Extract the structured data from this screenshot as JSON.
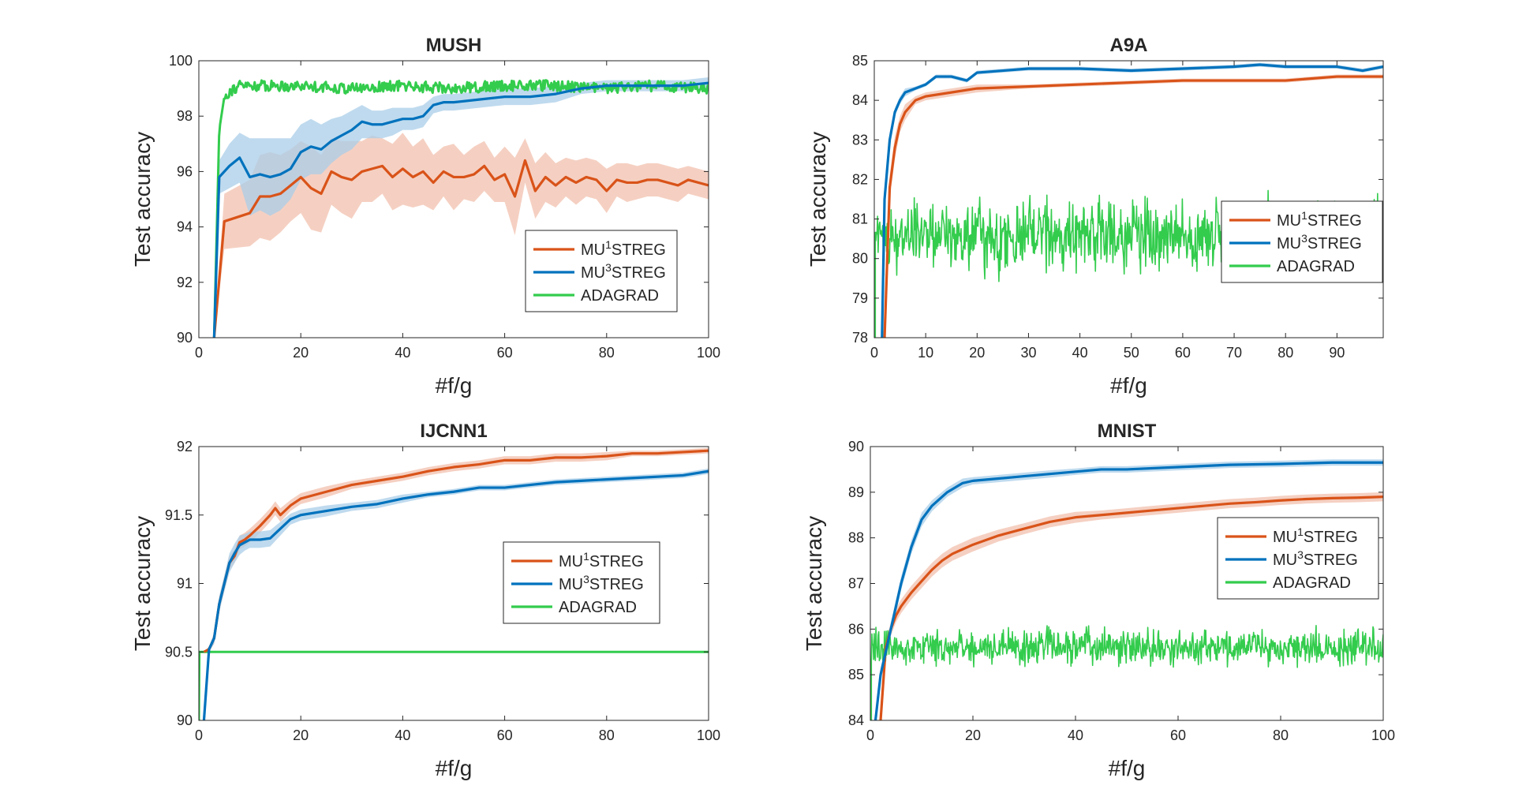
{
  "colors": {
    "mu1": "#d95319",
    "mu3": "#0072bd",
    "adagrad": "#33cc4d",
    "mu1_band": "#f2c0ad",
    "mu3_band": "#a9cde8",
    "axis": "#262626"
  },
  "chart_data": [
    {
      "type": "line",
      "title": "MUSH",
      "xlabel": "#f/g",
      "ylabel": "Test accuracy",
      "xlim": [
        0,
        100
      ],
      "ylim": [
        90,
        100
      ],
      "xticks": [
        "0",
        "20",
        "40",
        "60",
        "80",
        "100"
      ],
      "yticks": [
        "90",
        "92",
        "94",
        "96",
        "98",
        "100"
      ],
      "legend_position": "lower-right",
      "adagrad_style": "smooth",
      "adagrad_sigma": 0.2,
      "series": [
        {
          "name": "MU",
          "sup": "1",
          "suffix": "STREG",
          "key": "mu1",
          "x": [
            3,
            5,
            10,
            12,
            14,
            16,
            18,
            20,
            22,
            24,
            26,
            28,
            30,
            32,
            34,
            36,
            38,
            40,
            42,
            44,
            46,
            48,
            50,
            52,
            54,
            56,
            58,
            60,
            62,
            64,
            66,
            68,
            70,
            72,
            74,
            76,
            78,
            80,
            82,
            84,
            86,
            88,
            90,
            92,
            94,
            96,
            98,
            100
          ],
          "y": [
            90,
            94.2,
            94.5,
            95.1,
            95.1,
            95.2,
            95.5,
            95.8,
            95.4,
            95.2,
            96,
            95.8,
            95.7,
            96.0,
            96.1,
            96.2,
            95.8,
            96.1,
            95.8,
            96.0,
            95.6,
            96.0,
            95.8,
            95.8,
            95.9,
            96.2,
            95.7,
            95.9,
            95.1,
            96.4,
            95.3,
            95.8,
            95.5,
            95.8,
            95.6,
            95.8,
            95.7,
            95.3,
            95.7,
            95.6,
            95.6,
            95.7,
            95.7,
            95.6,
            95.5,
            95.7,
            95.6,
            95.5
          ],
          "band": [
            0,
            1.0,
            1.2,
            1.5,
            1.6,
            1.4,
            1.3,
            1.3,
            1.5,
            1.4,
            1.2,
            1.3,
            1.4,
            1.1,
            1.2,
            1.0,
            1.2,
            1.3,
            1.1,
            1.2,
            1.0,
            0.9,
            1.2,
            0.8,
            1.0,
            0.9,
            0.8,
            1.0,
            1.4,
            0.8,
            1.0,
            0.9,
            0.8,
            0.7,
            0.8,
            0.7,
            0.7,
            0.8,
            0.6,
            0.7,
            0.6,
            0.6,
            0.6,
            0.6,
            0.6,
            0.5,
            0.5,
            0.5
          ]
        },
        {
          "name": "MU",
          "sup": "3",
          "suffix": "STREG",
          "key": "mu3",
          "x": [
            3,
            4,
            6,
            8,
            10,
            12,
            14,
            16,
            18,
            20,
            22,
            24,
            26,
            28,
            30,
            32,
            34,
            36,
            38,
            40,
            42,
            44,
            46,
            48,
            50,
            55,
            60,
            65,
            70,
            75,
            80,
            85,
            90,
            95,
            100
          ],
          "y": [
            90,
            95.8,
            96.2,
            96.5,
            95.8,
            95.9,
            95.8,
            95.9,
            96.1,
            96.7,
            96.9,
            96.8,
            97.1,
            97.3,
            97.5,
            97.8,
            97.7,
            97.7,
            97.8,
            97.9,
            97.9,
            98.0,
            98.4,
            98.5,
            98.5,
            98.6,
            98.7,
            98.7,
            98.8,
            99.0,
            99.1,
            99.1,
            99.1,
            99.1,
            99.2
          ],
          "band": [
            0,
            0.6,
            0.8,
            0.9,
            1.4,
            1.3,
            1.4,
            1.3,
            1.1,
            1.0,
            1.0,
            0.9,
            0.8,
            0.7,
            0.7,
            0.6,
            0.5,
            0.5,
            0.5,
            0.4,
            0.4,
            0.4,
            0.3,
            0.3,
            0.3,
            0.3,
            0.3,
            0.3,
            0.3,
            0.2,
            0.2,
            0.2,
            0.2,
            0.2,
            0.2
          ]
        },
        {
          "name": "ADAGRAD",
          "sup": "",
          "suffix": "",
          "key": "adagrad",
          "x": [
            3,
            4,
            5,
            6,
            8,
            10,
            15,
            20,
            30,
            40,
            50,
            60,
            70,
            80,
            90,
            100
          ],
          "y": [
            90,
            97.5,
            98.7,
            98.9,
            99.1,
            99.1,
            99.1,
            99.1,
            99.0,
            99.1,
            99.0,
            99.1,
            99.1,
            99.0,
            99.1,
            99.0
          ]
        }
      ]
    },
    {
      "type": "line",
      "title": "A9A",
      "xlabel": "#f/g",
      "ylabel": "Test accuracy",
      "xlim": [
        0,
        99
      ],
      "ylim": [
        78,
        85
      ],
      "xticks": [
        "0",
        "10",
        "20",
        "30",
        "40",
        "50",
        "60",
        "70",
        "80",
        "90"
      ],
      "yticks": [
        "78",
        "79",
        "80",
        "81",
        "82",
        "83",
        "84",
        "85"
      ],
      "legend_position": "center-right",
      "adagrad_style": "noisy",
      "adagrad_center": 80.6,
      "adagrad_amp": 1.3,
      "adagrad_start": 0.2,
      "series": [
        {
          "name": "MU",
          "sup": "1",
          "suffix": "STREG",
          "key": "mu1",
          "x": [
            2,
            3,
            4,
            5,
            6,
            8,
            10,
            15,
            20,
            30,
            40,
            50,
            60,
            70,
            80,
            90,
            99
          ],
          "y": [
            78,
            81.8,
            82.8,
            83.4,
            83.7,
            84.0,
            84.1,
            84.2,
            84.3,
            84.35,
            84.4,
            84.45,
            84.5,
            84.5,
            84.5,
            84.6,
            84.6
          ],
          "band": [
            0,
            0.3,
            0.3,
            0.2,
            0.2,
            0.1,
            0.1,
            0.1,
            0.1,
            0.05,
            0.05,
            0.05,
            0.05,
            0.05,
            0.05,
            0.05,
            0.05
          ]
        },
        {
          "name": "MU",
          "sup": "3",
          "suffix": "STREG",
          "key": "mu3",
          "x": [
            1.5,
            2,
            3,
            4,
            5,
            6,
            8,
            10,
            12,
            15,
            18,
            20,
            25,
            30,
            40,
            50,
            60,
            70,
            75,
            80,
            90,
            95,
            99
          ],
          "y": [
            78,
            81.5,
            83.0,
            83.7,
            84.0,
            84.2,
            84.3,
            84.4,
            84.6,
            84.6,
            84.5,
            84.7,
            84.75,
            84.8,
            84.8,
            84.75,
            84.8,
            84.85,
            84.9,
            84.85,
            84.85,
            84.75,
            84.85
          ],
          "band": [
            0,
            0.3,
            0.2,
            0.1,
            0.1,
            0.1,
            0.05,
            0.05,
            0.05,
            0.05,
            0.05,
            0.05,
            0.05,
            0.05,
            0.05,
            0.05,
            0.05,
            0.05,
            0.05,
            0.05,
            0.05,
            0.05,
            0.05
          ]
        },
        {
          "name": "ADAGRAD",
          "sup": "",
          "suffix": "",
          "key": "adagrad",
          "x": [],
          "y": []
        }
      ]
    },
    {
      "type": "line",
      "title": "IJCNN1",
      "xlabel": "#f/g",
      "ylabel": "Test accuracy",
      "xlim": [
        0,
        100
      ],
      "ylim": [
        90,
        92
      ],
      "xticks": [
        "0",
        "20",
        "40",
        "60",
        "80",
        "100"
      ],
      "yticks": [
        "90",
        "90.5",
        "91",
        "91.5",
        "92"
      ],
      "legend_position": "center-right",
      "adagrad_style": "flat",
      "series": [
        {
          "name": "MU",
          "sup": "1",
          "suffix": "STREG",
          "key": "mu1",
          "x": [
            1,
            2,
            3,
            4,
            5,
            6,
            7,
            8,
            9,
            10,
            12,
            14,
            15,
            16,
            18,
            20,
            25,
            30,
            35,
            40,
            45,
            50,
            55,
            60,
            65,
            70,
            75,
            80,
            85,
            90,
            95,
            100
          ],
          "y": [
            90.5,
            90.52,
            90.6,
            90.85,
            91.0,
            91.15,
            91.2,
            91.3,
            91.32,
            91.35,
            91.42,
            91.5,
            91.55,
            91.5,
            91.57,
            91.62,
            91.67,
            91.72,
            91.75,
            91.78,
            91.82,
            91.85,
            91.87,
            91.9,
            91.9,
            91.92,
            91.92,
            91.93,
            91.95,
            91.95,
            91.96,
            91.97
          ],
          "band": [
            0,
            0.02,
            0.04,
            0.05,
            0.05,
            0.05,
            0.05,
            0.05,
            0.05,
            0.05,
            0.05,
            0.05,
            0.05,
            0.05,
            0.04,
            0.04,
            0.04,
            0.03,
            0.03,
            0.03,
            0.03,
            0.03,
            0.03,
            0.03,
            0.03,
            0.03,
            0.03,
            0.03,
            0.02,
            0.02,
            0.02,
            0.02
          ]
        },
        {
          "name": "MU",
          "sup": "3",
          "suffix": "STREG",
          "key": "mu3",
          "x": [
            1,
            2,
            3,
            4,
            5,
            6,
            7,
            8,
            9,
            10,
            12,
            14,
            16,
            18,
            20,
            25,
            30,
            35,
            40,
            45,
            50,
            55,
            60,
            65,
            70,
            75,
            80,
            85,
            90,
            95,
            100
          ],
          "y": [
            90,
            90.52,
            90.6,
            90.85,
            91.0,
            91.15,
            91.22,
            91.28,
            91.3,
            91.32,
            91.32,
            91.33,
            91.4,
            91.47,
            91.5,
            91.53,
            91.56,
            91.58,
            91.62,
            91.65,
            91.67,
            91.7,
            91.7,
            91.72,
            91.74,
            91.75,
            91.76,
            91.77,
            91.78,
            91.79,
            91.82
          ],
          "band": [
            0,
            0.02,
            0.04,
            0.06,
            0.06,
            0.07,
            0.07,
            0.07,
            0.06,
            0.06,
            0.06,
            0.06,
            0.05,
            0.04,
            0.04,
            0.04,
            0.03,
            0.03,
            0.03,
            0.02,
            0.02,
            0.02,
            0.02,
            0.02,
            0.02,
            0.02,
            0.02,
            0.02,
            0.02,
            0.02,
            0.02
          ]
        },
        {
          "name": "ADAGRAD",
          "sup": "",
          "suffix": "",
          "key": "adagrad",
          "x": [
            0,
            0.1,
            100
          ],
          "y": [
            90,
            90.5,
            90.5
          ]
        }
      ]
    },
    {
      "type": "line",
      "title": "MNIST",
      "xlabel": "#f/g",
      "ylabel": "Test accuracy",
      "xlim": [
        0,
        100
      ],
      "ylim": [
        84,
        90
      ],
      "xticks": [
        "0",
        "20",
        "40",
        "60",
        "80",
        "100"
      ],
      "yticks": [
        "84",
        "85",
        "86",
        "87",
        "88",
        "89",
        "90"
      ],
      "legend_position": "center-right",
      "adagrad_style": "noisy",
      "adagrad_center": 85.6,
      "adagrad_amp": 0.55,
      "adagrad_start": 0.2,
      "series": [
        {
          "name": "MU",
          "sup": "1",
          "suffix": "STREG",
          "key": "mu1",
          "x": [
            2,
            3,
            4,
            5,
            6,
            8,
            10,
            12,
            14,
            16,
            18,
            20,
            25,
            30,
            35,
            40,
            45,
            50,
            55,
            60,
            65,
            70,
            75,
            80,
            85,
            90,
            95,
            100
          ],
          "y": [
            84,
            85.6,
            86.0,
            86.3,
            86.5,
            86.8,
            87.05,
            87.3,
            87.5,
            87.65,
            87.75,
            87.85,
            88.05,
            88.2,
            88.35,
            88.45,
            88.5,
            88.55,
            88.6,
            88.65,
            88.7,
            88.75,
            88.78,
            88.82,
            88.85,
            88.87,
            88.88,
            88.9
          ],
          "band": [
            0,
            0.15,
            0.15,
            0.15,
            0.15,
            0.15,
            0.15,
            0.15,
            0.15,
            0.15,
            0.15,
            0.15,
            0.13,
            0.12,
            0.12,
            0.12,
            0.1,
            0.1,
            0.1,
            0.1,
            0.1,
            0.1,
            0.1,
            0.1,
            0.1,
            0.1,
            0.1,
            0.1
          ]
        },
        {
          "name": "MU",
          "sup": "3",
          "suffix": "STREG",
          "key": "mu3",
          "x": [
            1,
            2,
            3,
            4,
            5,
            6,
            8,
            10,
            12,
            15,
            18,
            20,
            25,
            30,
            35,
            40,
            45,
            50,
            60,
            70,
            80,
            90,
            100
          ],
          "y": [
            84,
            85.0,
            85.5,
            86.0,
            86.5,
            87.0,
            87.8,
            88.4,
            88.7,
            89.0,
            89.2,
            89.25,
            89.3,
            89.35,
            89.4,
            89.45,
            89.5,
            89.5,
            89.55,
            89.6,
            89.62,
            89.65,
            89.65
          ],
          "band": [
            0,
            0.15,
            0.15,
            0.15,
            0.15,
            0.15,
            0.15,
            0.15,
            0.12,
            0.1,
            0.1,
            0.08,
            0.08,
            0.08,
            0.08,
            0.07,
            0.07,
            0.07,
            0.07,
            0.07,
            0.07,
            0.07,
            0.07
          ]
        },
        {
          "name": "ADAGRAD",
          "sup": "",
          "suffix": "",
          "key": "adagrad",
          "x": [],
          "y": []
        }
      ]
    }
  ]
}
